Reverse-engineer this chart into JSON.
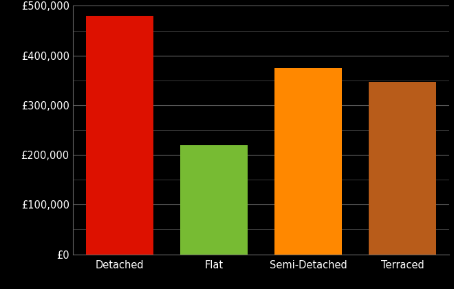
{
  "categories": [
    "Detached",
    "Flat",
    "Semi-Detached",
    "Terraced"
  ],
  "values": [
    480000,
    220000,
    375000,
    347000
  ],
  "bar_colors": [
    "#dd1100",
    "#77bb33",
    "#ff8800",
    "#b85c1a"
  ],
  "background_color": "#000000",
  "text_color": "#ffffff",
  "grid_color": "#666666",
  "minor_grid_color": "#444444",
  "ylim": [
    0,
    500000
  ],
  "yticks_major": [
    0,
    100000,
    200000,
    300000,
    400000,
    500000
  ],
  "yticks_minor": [
    50000,
    150000,
    250000,
    350000,
    450000
  ],
  "tick_label_fontsize": 10.5,
  "bar_width": 0.72
}
